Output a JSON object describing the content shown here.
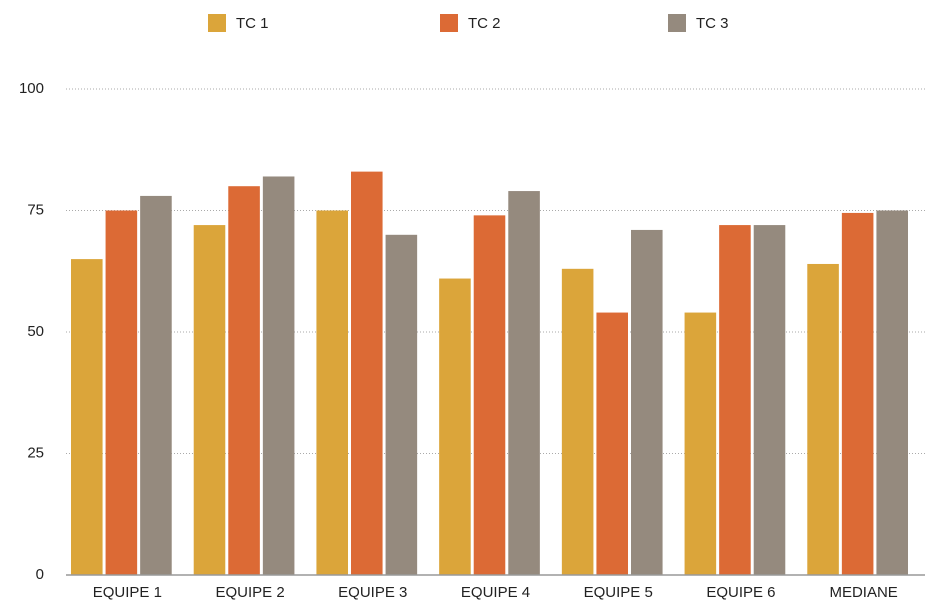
{
  "chart_data": {
    "type": "bar",
    "categories": [
      "EQUIPE 1",
      "EQUIPE 2",
      "EQUIPE 3",
      "EQUIPE 4",
      "EQUIPE 5",
      "EQUIPE 6",
      "MEDIANE"
    ],
    "series": [
      {
        "name": "TC 1",
        "color": "#dba53a",
        "values": [
          65,
          72,
          75,
          61,
          63,
          54,
          64
        ]
      },
      {
        "name": "TC 2",
        "color": "#dc6a35",
        "values": [
          75,
          80,
          83,
          74,
          54,
          72,
          74.5
        ]
      },
      {
        "name": "TC 3",
        "color": "#958a7e",
        "values": [
          78,
          82,
          70,
          79,
          71,
          72,
          75
        ]
      }
    ],
    "ylim": [
      0,
      100
    ],
    "yticks": [
      0,
      25,
      50,
      75,
      100
    ],
    "grid": true,
    "legend": "top"
  }
}
